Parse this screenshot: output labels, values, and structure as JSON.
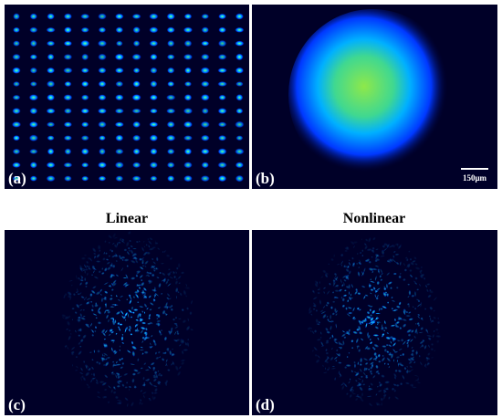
{
  "panels": [
    {
      "label": "(a)"
    },
    {
      "label": "(b)",
      "scale_bar": "150μm"
    },
    {
      "label": "(c)",
      "title": "Linear"
    },
    {
      "label": "(d)",
      "title": "Nonlinear"
    }
  ]
}
